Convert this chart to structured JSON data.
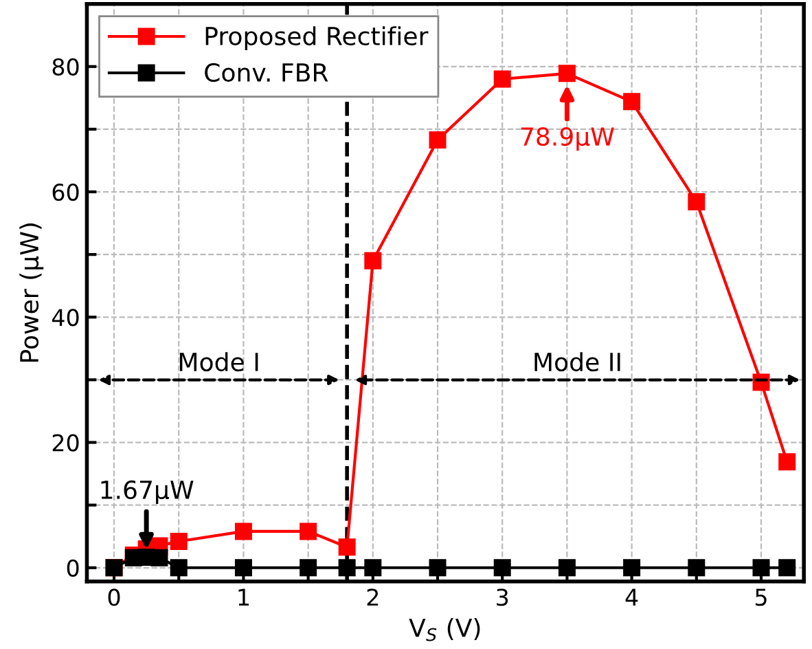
{
  "chart_data": {
    "type": "line",
    "xlabel": "V$_{S}$ (V)",
    "ylabel": "Power (μW)",
    "xlim": [
      -0.21,
      5.33
    ],
    "ylim": [
      -2.2,
      90
    ],
    "xticks": [
      0,
      {
        "value": 0.5,
        "label": null
      },
      1,
      {
        "value": 1.5,
        "label": null
      },
      2,
      {
        "value": 2.5,
        "label": null
      },
      3,
      {
        "value": 3.5,
        "label": null
      },
      4,
      {
        "value": 4.5,
        "label": null
      },
      5
    ],
    "yticks": [
      0,
      {
        "value": 10,
        "label": null
      },
      20,
      {
        "value": 30,
        "label": null
      },
      40,
      {
        "value": 50,
        "label": null
      },
      60,
      {
        "value": 70,
        "label": null
      },
      80
    ],
    "grid": true,
    "legend": "top left",
    "marker": "square",
    "line_style": "solid",
    "series": [
      {
        "name": "Proposed Rectifier",
        "color": "#ff0000",
        "x": [
          0,
          0.15,
          0.25,
          0.35,
          0.5,
          1,
          1.5,
          1.8,
          2,
          2.5,
          3,
          3.5,
          4,
          4.5,
          5,
          5.2
        ],
        "values": [
          0,
          2,
          3,
          3.5,
          4.2,
          5.8,
          5.8,
          3.3,
          49,
          68.3,
          78,
          78.9,
          74.4,
          58.4,
          29.6,
          16.9
        ]
      },
      {
        "name": "Conv. FBR",
        "color": "#000000",
        "x": [
          0,
          0.15,
          0.25,
          0.35,
          0.5,
          1,
          1.5,
          1.8,
          2,
          2.5,
          3,
          3.5,
          4,
          4.5,
          5,
          5.2
        ],
        "values": [
          0,
          1.6,
          1.67,
          1.6,
          0,
          0,
          0,
          0,
          0,
          0,
          0,
          0,
          0,
          0,
          0,
          0
        ]
      }
    ],
    "ref_lines": [
      {
        "axis": "x",
        "value": 1.8,
        "color": "#000000",
        "line_style": "dashed"
      }
    ],
    "annotations": [
      {
        "text": "1.67μW",
        "x": 0.25,
        "y": 1.67
      },
      {
        "text": "78.9μW",
        "x": 3.5,
        "y": 78.9
      },
      "Mode I",
      "Mode II"
    ]
  }
}
